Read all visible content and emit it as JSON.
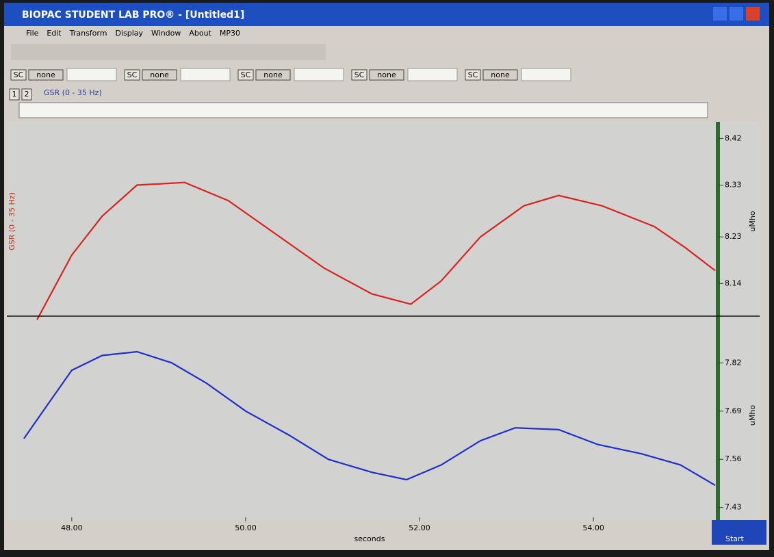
{
  "window": {
    "title": "BIOPAC STUDENT LAB PRO® - [Untitled1]",
    "menu": [
      "File",
      "Edit",
      "Transform",
      "Display",
      "Window",
      "About",
      "MP30"
    ]
  },
  "scale_controls": [
    {
      "button": "SC",
      "value": "none"
    },
    {
      "button": "SC",
      "value": "none"
    },
    {
      "button": "SC",
      "value": "none"
    },
    {
      "button": "SC",
      "value": "none"
    },
    {
      "button": "SC",
      "value": "none"
    }
  ],
  "channel_bar": {
    "buttons": [
      "1",
      "2"
    ],
    "label": "GSR (0 - 35 Hz)"
  },
  "taskbar": {
    "start": "Start"
  },
  "chart_data": [
    {
      "type": "line",
      "ylabel": "GSR (0 - 35 Hz)",
      "y2label": "uMho",
      "x": [
        47.6,
        48.0,
        48.35,
        48.75,
        49.3,
        49.8,
        50.35,
        50.9,
        51.45,
        51.9,
        52.25,
        52.7,
        53.2,
        53.6,
        54.1,
        54.7,
        55.05,
        55.4
      ],
      "series": [
        {
          "color": "#d8231f",
          "values": [
            8.07,
            8.195,
            8.27,
            8.33,
            8.335,
            8.3,
            8.235,
            8.17,
            8.12,
            8.1,
            8.145,
            8.23,
            8.29,
            8.31,
            8.29,
            8.25,
            8.21,
            8.165
          ]
        }
      ],
      "xlim": [
        47.45,
        55.4
      ],
      "ylim": [
        8.077,
        8.443
      ],
      "yticks": [
        8.42,
        8.33,
        8.23,
        8.14
      ]
    },
    {
      "type": "line",
      "xlabel": "seconds",
      "y2label": "uMho",
      "x": [
        47.45,
        47.73,
        48.0,
        48.35,
        48.75,
        49.15,
        49.55,
        50.0,
        50.5,
        50.95,
        51.45,
        51.85,
        52.25,
        52.7,
        53.1,
        53.6,
        54.05,
        54.55,
        55.0,
        55.4
      ],
      "series": [
        {
          "color": "#1f2fc8",
          "values": [
            7.616,
            7.71,
            7.8,
            7.84,
            7.85,
            7.82,
            7.765,
            7.69,
            7.625,
            7.56,
            7.525,
            7.505,
            7.545,
            7.61,
            7.645,
            7.64,
            7.6,
            7.575,
            7.545,
            7.49
          ]
        }
      ],
      "xlim": [
        47.45,
        55.4
      ],
      "ylim": [
        7.411,
        7.946
      ],
      "yticks": [
        7.82,
        7.69,
        7.56,
        7.43
      ],
      "xticks": [
        {
          "value": 48,
          "label": "48.00"
        },
        {
          "value": 50,
          "label": "50.00"
        },
        {
          "value": 52,
          "label": "52.00"
        },
        {
          "value": 54,
          "label": "54.00"
        }
      ]
    }
  ]
}
